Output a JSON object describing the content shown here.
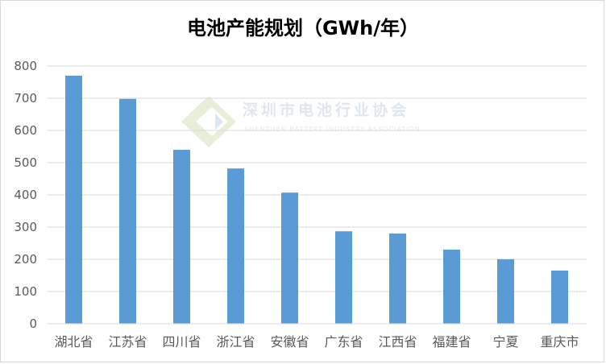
{
  "chart_data": {
    "type": "bar",
    "title": "电池产能规划（GWh/年）",
    "categories": [
      "湖北省",
      "江苏省",
      "四川省",
      "浙江省",
      "安徽省",
      "广东省",
      "江西省",
      "福建省",
      "宁夏",
      "重庆市"
    ],
    "values": [
      770,
      698,
      540,
      482,
      407,
      287,
      280,
      230,
      200,
      165
    ],
    "ylim": [
      0,
      800
    ],
    "yticks": [
      0,
      100,
      200,
      300,
      400,
      500,
      600,
      700,
      800
    ],
    "grid": true,
    "legend": "none",
    "bar_color": "#5b9bd5"
  },
  "watermark": {
    "cn": "深圳市电池行业协会",
    "en": "SHENZHEN BATTERY INDUSTRY ASSOCIATION"
  },
  "colors": {
    "bar": "#5b9bd5",
    "grid": "#d9d9d9",
    "text": "#595959"
  }
}
